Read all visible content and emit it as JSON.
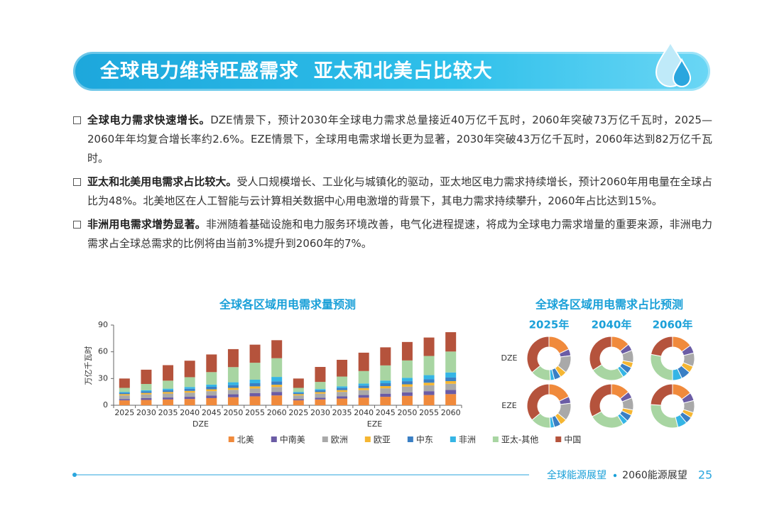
{
  "header": {
    "title": "全球电力维持旺盛需求  亚太和北美占比较大"
  },
  "bullets": [
    {
      "heading": "全球电力需求快速增长。",
      "text": "DZE情景下，预计2030年全球电力需求总量接近40万亿千瓦时，2060年突破73万亿千瓦时，2025—2060年年均复合增长率约2.6%。EZE情景下，全球用电需求增长更为显著，2030年突破43万亿千瓦时，2060年达到82万亿千瓦时。"
    },
    {
      "heading": "亚太和北美用电需求占比较大。",
      "text": "受人口规模增长、工业化与城镇化的驱动，亚太地区电力需求持续增长，预计2060年用电量在全球占比为48%。北美地区在人工智能与云计算相关数据中心用电激增的背景下，其电力需求持续攀升，2060年占比达到15%。"
    },
    {
      "heading": "非洲用电需求增势显著。",
      "text": "非洲随着基础设施和电力服务环境改善，电气化进程提速，将成为全球电力需求增量的重要来源，非洲电力需求占全球总需求的比例将由当前3%提升到2060年的7%。"
    }
  ],
  "chart_data": [
    {
      "type": "stacked-bar",
      "title": "全球各区域用电需求量预测",
      "ylabel": "万亿千瓦时",
      "categories": [
        "2025",
        "2030",
        "2035",
        "2040",
        "2045",
        "2050",
        "2055",
        "2060",
        "2025",
        "2030",
        "2035",
        "2040",
        "2045",
        "2050",
        "2055",
        "2060"
      ],
      "group_labels": [
        "DZE",
        "EZE"
      ],
      "ylim": [
        0,
        90
      ],
      "yticks": [
        0,
        30,
        60,
        90
      ],
      "series": [
        {
          "name": "北美",
          "color": "#f08a3c",
          "values": [
            5.5,
            6,
            6.5,
            7,
            8,
            9,
            10,
            11,
            5.5,
            6.5,
            7.5,
            8.5,
            9.5,
            10.5,
            11.5,
            12.5
          ]
        },
        {
          "name": "中南美",
          "color": "#6b5ca5",
          "values": [
            1.5,
            2,
            2.2,
            2.5,
            3,
            3.3,
            3.6,
            4,
            1.5,
            2,
            2.5,
            3,
            3.5,
            4,
            4.3,
            4.6
          ]
        },
        {
          "name": "欧洲",
          "color": "#a9a9a9",
          "values": [
            4,
            4.2,
            4.4,
            4.6,
            4.8,
            5,
            5.2,
            5.5,
            4,
            4.5,
            5,
            5.5,
            6,
            6.3,
            6.6,
            7
          ]
        },
        {
          "name": "欧亚",
          "color": "#f5b632",
          "values": [
            1.5,
            1.6,
            1.8,
            2,
            2.1,
            2.2,
            2.4,
            2.5,
            1.5,
            1.8,
            2,
            2.3,
            2.5,
            2.7,
            2.9,
            3
          ]
        },
        {
          "name": "中东",
          "color": "#3a7fc4",
          "values": [
            1.5,
            1.8,
            2.1,
            2.4,
            2.8,
            3.1,
            3.5,
            3.8,
            1.5,
            2,
            2.4,
            2.8,
            3.2,
            3.5,
            3.8,
            4
          ]
        },
        {
          "name": "非洲",
          "color": "#35b5e5",
          "values": [
            1,
            1.3,
            1.6,
            2,
            2.5,
            3.2,
            4,
            5,
            1,
            1.4,
            1.8,
            2.3,
            3,
            3.8,
            4.7,
            5.7
          ]
        },
        {
          "name": "亚太-其他",
          "color": "#a8d5a2",
          "values": [
            4.5,
            7,
            9,
            11,
            14,
            17,
            19,
            21,
            4.5,
            8,
            11,
            14,
            17,
            19.5,
            21.5,
            23.5
          ]
        },
        {
          "name": "中国",
          "color": "#b5533c",
          "values": [
            10.5,
            16,
            17.4,
            18.5,
            19.8,
            20.2,
            20.3,
            20.2,
            10.5,
            16.8,
            18.8,
            20.6,
            20.3,
            20.7,
            20.7,
            21.7
          ]
        }
      ]
    },
    {
      "type": "donut-grid",
      "title": "全球各区域用电需求占比预测",
      "columns": [
        "2025年",
        "2040年",
        "2060年"
      ],
      "rows": [
        {
          "name": "DZE",
          "values": [
            [
              18,
              5,
              13,
              5,
              5,
              3,
              15,
              36
            ],
            [
              14,
              5,
              9,
              4,
              5,
              4,
              25,
              34
            ],
            [
              15,
              6,
              10,
              5,
              7,
              7,
              28,
              22
            ]
          ]
        },
        {
          "name": "EZE",
          "values": [
            [
              18,
              5,
              13,
              5,
              5,
              3,
              15,
              36
            ],
            [
              14,
              5,
              9,
              4,
              5,
              4,
              26,
              33
            ],
            [
              15,
              6,
              9,
              4,
              5,
              7,
              30,
              24
            ]
          ]
        }
      ]
    }
  ],
  "footer": {
    "left": "全球能源展望",
    "right": "2060能源展望",
    "page": "25"
  }
}
